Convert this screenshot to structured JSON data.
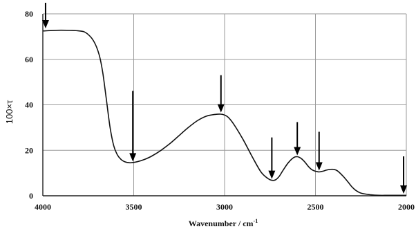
{
  "chart_data": {
    "type": "line",
    "xlabel": "Wavenumber / cm",
    "xlabel_superscript": "-1",
    "ylabel": "100×τ",
    "xlim": [
      4000,
      2000
    ],
    "ylim": [
      0,
      80
    ],
    "x_ticks": [
      "4000",
      "3500",
      "3000",
      "2500",
      "2000"
    ],
    "y_ticks": [
      "0",
      "20",
      "40",
      "60",
      "80"
    ],
    "grid": true,
    "series": [
      {
        "x": [
          4000,
          3900,
          3800,
          3760,
          3720,
          3690,
          3670,
          3650,
          3630,
          3610,
          3590,
          3570,
          3550,
          3520,
          3480,
          3440,
          3400,
          3350,
          3300,
          3250,
          3200,
          3150,
          3100,
          3050,
          3020,
          3000,
          2980,
          2950,
          2900,
          2850,
          2800,
          2760,
          2740,
          2720,
          2700,
          2680,
          2650,
          2620,
          2600,
          2580,
          2560,
          2540,
          2520,
          2500,
          2480,
          2460,
          2440,
          2420,
          2400,
          2380,
          2350,
          2320,
          2300,
          2280,
          2250,
          2200,
          2150,
          2100,
          2050,
          2000
        ],
        "y": [
          72.5,
          72.8,
          72.5,
          71.5,
          68,
          62,
          54,
          42,
          30,
          22,
          18,
          16,
          15,
          14.5,
          15,
          16,
          17.5,
          20,
          23,
          26.5,
          30,
          33,
          35,
          35.8,
          35.9,
          35.5,
          34.5,
          31.5,
          25,
          17.5,
          10.5,
          7.5,
          6.8,
          7,
          8.5,
          11,
          14.5,
          16.8,
          17.2,
          16.5,
          15,
          13,
          11.5,
          10.8,
          10.5,
          10.8,
          11.3,
          11.6,
          11.6,
          11,
          8.8,
          6,
          4,
          2.5,
          1.2,
          0.5,
          0.2,
          0.2,
          0.2,
          0.2
        ]
      }
    ],
    "arrows": [
      {
        "x": 3985,
        "y": 73
      },
      {
        "x": 3505,
        "y": 14.5
      },
      {
        "x": 3020,
        "y": 36
      },
      {
        "x": 2740,
        "y": 6.8
      },
      {
        "x": 2600,
        "y": 17.2
      },
      {
        "x": 2480,
        "y": 10.5
      },
      {
        "x": 2015,
        "y": 0.3
      }
    ]
  }
}
